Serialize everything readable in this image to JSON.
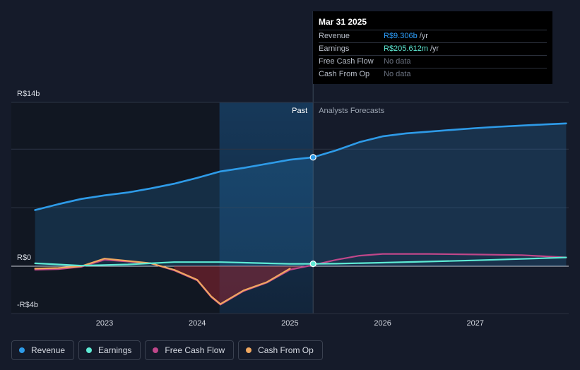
{
  "tooltip": {
    "date": "Mar 31 2025",
    "rows": [
      {
        "label": "Revenue",
        "value": "R$9.306b",
        "unit": "/yr",
        "color": "#2ea1ff"
      },
      {
        "label": "Earnings",
        "value": "R$205.612m",
        "unit": "/yr",
        "color": "#5eead4"
      },
      {
        "label": "Free Cash Flow",
        "value": "No data",
        "unit": "",
        "color": "#6b7280"
      },
      {
        "label": "Cash From Op",
        "value": "No data",
        "unit": "",
        "color": "#6b7280"
      }
    ]
  },
  "legend": [
    {
      "label": "Revenue",
      "color": "#2e9be8"
    },
    {
      "label": "Earnings",
      "color": "#5eead4"
    },
    {
      "label": "Free Cash Flow",
      "color": "#c0478a"
    },
    {
      "label": "Cash From Op",
      "color": "#f0a860"
    }
  ],
  "chart_data": {
    "type": "line",
    "currency": "R$",
    "y_unit": "billions",
    "ylim": [
      -4,
      14
    ],
    "y_tick_labels": [
      {
        "label": "R$14b",
        "value": 14
      },
      {
        "label": "R$0",
        "value": 0
      },
      {
        "label": "-R$4b",
        "value": -4
      }
    ],
    "y_gridlines": [
      14,
      10,
      5,
      0
    ],
    "xlim": [
      2022.24,
      2027.98
    ],
    "x_ticks": [
      {
        "label": "2023",
        "value": 2023
      },
      {
        "label": "2024",
        "value": 2024
      },
      {
        "label": "2025",
        "value": 2025
      },
      {
        "label": "2026",
        "value": 2026
      },
      {
        "label": "2027",
        "value": 2027
      }
    ],
    "past_label": "Past",
    "forecast_label": "Analysts Forecasts",
    "forecast_start": 2025.25,
    "highlight_start": 2024.24,
    "series": [
      {
        "name": "Revenue",
        "color": "#2e9be8",
        "area": true,
        "points": [
          [
            2022.25,
            4.8
          ],
          [
            2022.5,
            5.3
          ],
          [
            2022.75,
            5.75
          ],
          [
            2023.0,
            6.05
          ],
          [
            2023.25,
            6.3
          ],
          [
            2023.5,
            6.65
          ],
          [
            2023.75,
            7.05
          ],
          [
            2024.0,
            7.55
          ],
          [
            2024.25,
            8.1
          ],
          [
            2024.5,
            8.4
          ],
          [
            2024.75,
            8.75
          ],
          [
            2025.0,
            9.1
          ],
          [
            2025.25,
            9.306
          ],
          [
            2025.5,
            9.9
          ],
          [
            2025.75,
            10.6
          ],
          [
            2026.0,
            11.1
          ],
          [
            2026.25,
            11.35
          ],
          [
            2026.5,
            11.5
          ],
          [
            2026.75,
            11.65
          ],
          [
            2027.0,
            11.8
          ],
          [
            2027.25,
            11.92
          ],
          [
            2027.5,
            12.02
          ],
          [
            2027.75,
            12.12
          ],
          [
            2027.98,
            12.2
          ]
        ]
      },
      {
        "name": "Earnings",
        "color": "#5eead4",
        "area": false,
        "points": [
          [
            2022.25,
            0.25
          ],
          [
            2022.5,
            0.15
          ],
          [
            2022.75,
            0.05
          ],
          [
            2023.0,
            0.1
          ],
          [
            2023.25,
            0.15
          ],
          [
            2023.5,
            0.25
          ],
          [
            2023.75,
            0.35
          ],
          [
            2024.0,
            0.35
          ],
          [
            2024.25,
            0.35
          ],
          [
            2024.5,
            0.3
          ],
          [
            2024.75,
            0.25
          ],
          [
            2025.0,
            0.2
          ],
          [
            2025.25,
            0.205612
          ],
          [
            2025.5,
            0.22
          ],
          [
            2026.0,
            0.3
          ],
          [
            2026.5,
            0.4
          ],
          [
            2027.0,
            0.5
          ],
          [
            2027.5,
            0.62
          ],
          [
            2027.98,
            0.75
          ]
        ]
      },
      {
        "name": "Free Cash Flow",
        "color": "#c0478a",
        "area": true,
        "points": [
          [
            2022.25,
            -0.3
          ],
          [
            2022.5,
            -0.25
          ],
          [
            2022.75,
            -0.05
          ],
          [
            2023.0,
            0.55
          ],
          [
            2023.25,
            0.4
          ],
          [
            2023.5,
            0.25
          ],
          [
            2023.75,
            -0.35
          ],
          [
            2024.0,
            -1.2
          ],
          [
            2024.15,
            -2.6
          ],
          [
            2024.25,
            -3.25
          ],
          [
            2024.5,
            -2.1
          ],
          [
            2024.75,
            -1.4
          ],
          [
            2025.0,
            -0.3
          ],
          [
            2025.25,
            0.1
          ],
          [
            2025.5,
            0.55
          ],
          [
            2025.75,
            0.9
          ],
          [
            2026.0,
            1.05
          ],
          [
            2026.5,
            1.05
          ],
          [
            2027.0,
            1.0
          ],
          [
            2027.5,
            0.95
          ],
          [
            2027.98,
            0.75
          ]
        ]
      },
      {
        "name": "Cash From Op",
        "color": "#f0a860",
        "area": false,
        "points": [
          [
            2022.25,
            -0.2
          ],
          [
            2022.5,
            -0.15
          ],
          [
            2022.75,
            0.0
          ],
          [
            2023.0,
            0.65
          ],
          [
            2023.25,
            0.45
          ],
          [
            2023.5,
            0.25
          ],
          [
            2023.75,
            -0.3
          ],
          [
            2024.0,
            -1.15
          ],
          [
            2024.15,
            -2.55
          ],
          [
            2024.25,
            -3.2
          ],
          [
            2024.5,
            -2.05
          ],
          [
            2024.75,
            -1.35
          ],
          [
            2025.0,
            -0.2
          ]
        ]
      }
    ]
  }
}
